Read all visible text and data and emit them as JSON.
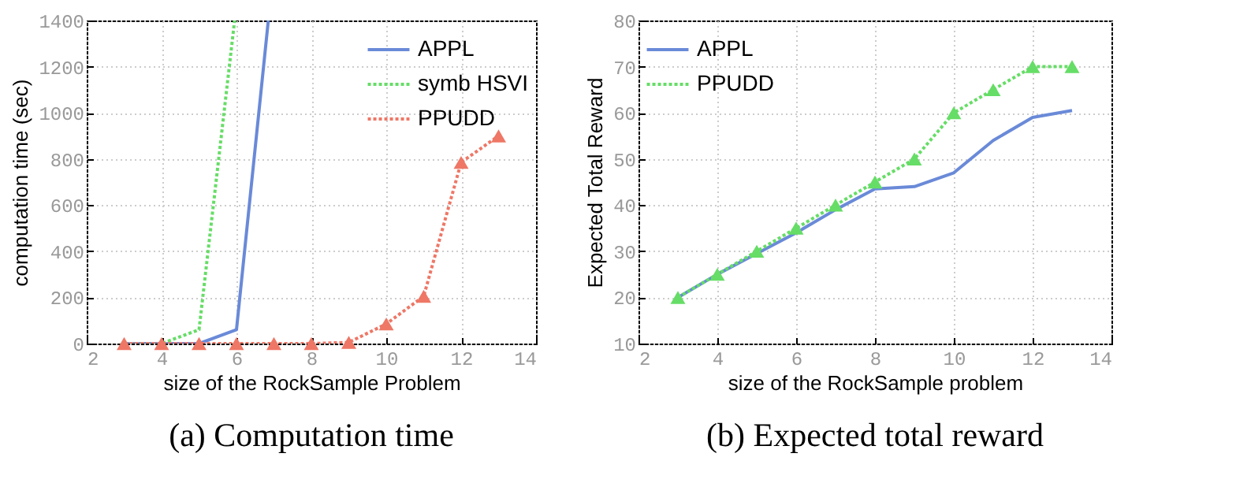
{
  "chart_data": [
    {
      "type": "line",
      "title": "(a) Computation time",
      "xlabel": "size of the RockSample Problem",
      "ylabel": "computation time (sec)",
      "xlim": [
        2,
        14
      ],
      "xticks": [
        2,
        4,
        6,
        8,
        10,
        12,
        14
      ],
      "ylim": [
        0,
        1400
      ],
      "yticks": [
        0,
        200,
        400,
        600,
        800,
        1000,
        1200,
        1400
      ],
      "grid": true,
      "legend": "top right",
      "series": [
        {
          "name": "APPL",
          "color": "#6a8ad8",
          "line_style": "solid",
          "marker": "none",
          "x": [
            3,
            4,
            5,
            6,
            6.85
          ],
          "values": [
            0,
            0,
            0,
            60,
            1400
          ]
        },
        {
          "name": "symb HSVI",
          "color": "#66dd66",
          "line_style": "dotted",
          "marker": "none",
          "x": [
            3,
            4,
            5,
            5.95
          ],
          "values": [
            0,
            0,
            60,
            1400
          ]
        },
        {
          "name": "PPUDD",
          "color": "#ee7766",
          "line_style": "dotted",
          "marker": "triangle",
          "x": [
            3,
            4,
            5,
            6,
            7,
            8,
            9,
            10,
            11,
            12,
            13
          ],
          "values": [
            0,
            0,
            0,
            0,
            0,
            0,
            5,
            85,
            205,
            785,
            900
          ]
        }
      ]
    },
    {
      "type": "line",
      "title": "(b) Expected total reward",
      "xlabel": "size of the RockSample problem",
      "ylabel": "Expected Total Reward",
      "xlim": [
        2,
        14
      ],
      "xticks": [
        2,
        4,
        6,
        8,
        10,
        12,
        14
      ],
      "ylim": [
        10,
        80
      ],
      "yticks": [
        10,
        20,
        30,
        40,
        50,
        60,
        70,
        80
      ],
      "grid": true,
      "legend": "top left",
      "series": [
        {
          "name": "APPL",
          "color": "#6a8ad8",
          "line_style": "solid",
          "marker": "none",
          "x": [
            3,
            4,
            5,
            6,
            7,
            8,
            9,
            10,
            11,
            12,
            13
          ],
          "values": [
            20,
            25,
            29.5,
            34,
            39,
            43.5,
            44,
            47,
            54,
            59,
            60.5
          ]
        },
        {
          "name": "PPUDD",
          "color": "#66dd66",
          "line_style": "dotted",
          "marker": "triangle",
          "x": [
            3,
            4,
            5,
            6,
            7,
            8,
            9,
            10,
            11,
            12,
            13
          ],
          "values": [
            20,
            25,
            30,
            35,
            40,
            45,
            50,
            60,
            65,
            70,
            70
          ]
        }
      ]
    }
  ]
}
